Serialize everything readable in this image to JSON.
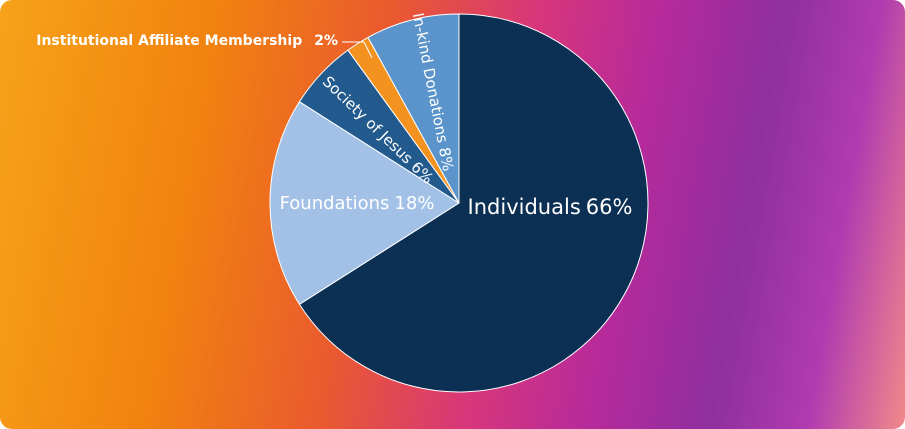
{
  "chart_data": {
    "type": "pie",
    "categories": [
      "Individuals",
      "Foundations",
      "Society of Jesus",
      "Institutional Affiliate Membership",
      "In-kind Donations"
    ],
    "values": [
      66,
      18,
      6,
      2,
      8
    ],
    "value_labels": [
      "66%",
      "18%",
      "6%",
      "2%",
      "8%"
    ],
    "colors": [
      "#0c2f54",
      "#a3c1e6",
      "#235a8d",
      "#f3921f",
      "#5b94cb"
    ]
  }
}
